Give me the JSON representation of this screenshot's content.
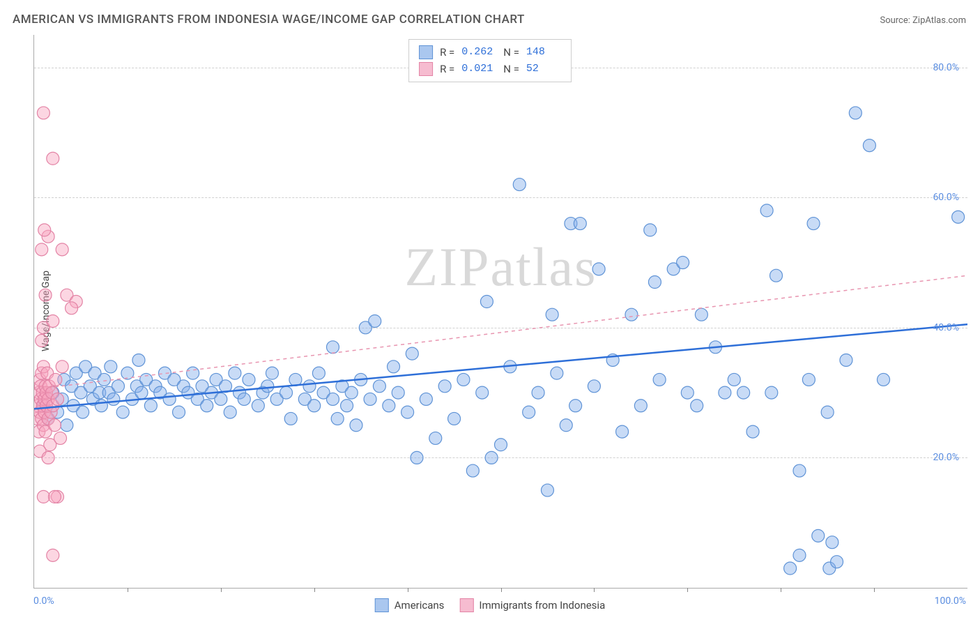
{
  "title": "AMERICAN VS IMMIGRANTS FROM INDONESIA WAGE/INCOME GAP CORRELATION CHART",
  "source_prefix": "Source: ",
  "source_name": "ZipAtlas.com",
  "y_axis_label": "Wage/Income Gap",
  "watermark": "ZIPatlas",
  "chart": {
    "type": "scatter",
    "background_color": "#ffffff",
    "grid_color": "#d0d0d0",
    "axis_color": "#aaaaaa",
    "tick_label_color": "#5a8de0",
    "xlim": [
      0,
      100
    ],
    "ylim": [
      0,
      85
    ],
    "x_tick_labels": {
      "min": "0.0%",
      "max": "100.0%"
    },
    "x_tick_positions": [
      10,
      20,
      30,
      40,
      50,
      60,
      70,
      80,
      90
    ],
    "y_ticks": [
      {
        "value": 20,
        "label": "20.0%"
      },
      {
        "value": 40,
        "label": "40.0%"
      },
      {
        "value": 60,
        "label": "60.0%"
      },
      {
        "value": 80,
        "label": "80.0%"
      }
    ],
    "marker_radius": 9,
    "marker_stroke_width": 1.2,
    "series": [
      {
        "key": "americans",
        "label": "Americans",
        "fill": "rgba(133,175,234,0.45)",
        "stroke": "#5f93d6",
        "swatch_fill": "#aac7ef",
        "swatch_border": "#5f93d6",
        "R": "0.262",
        "N": "148",
        "regression": {
          "x1": 0,
          "y1": 27.5,
          "x2": 100,
          "y2": 40.5,
          "color": "#2e6fd8",
          "width": 2.5,
          "dash": null
        },
        "points": [
          [
            1,
            28
          ],
          [
            1.5,
            26
          ],
          [
            2,
            30
          ],
          [
            2.5,
            27
          ],
          [
            3,
            29
          ],
          [
            3.2,
            32
          ],
          [
            3.5,
            25
          ],
          [
            4,
            31
          ],
          [
            4.2,
            28
          ],
          [
            4.5,
            33
          ],
          [
            5,
            30
          ],
          [
            5.2,
            27
          ],
          [
            5.5,
            34
          ],
          [
            6,
            31
          ],
          [
            6.3,
            29
          ],
          [
            6.5,
            33
          ],
          [
            7,
            30
          ],
          [
            7.2,
            28
          ],
          [
            7.5,
            32
          ],
          [
            8,
            30
          ],
          [
            8.2,
            34
          ],
          [
            8.5,
            29
          ],
          [
            9,
            31
          ],
          [
            9.5,
            27
          ],
          [
            10,
            33
          ],
          [
            10.5,
            29
          ],
          [
            11,
            31
          ],
          [
            11.2,
            35
          ],
          [
            11.5,
            30
          ],
          [
            12,
            32
          ],
          [
            12.5,
            28
          ],
          [
            13,
            31
          ],
          [
            13.5,
            30
          ],
          [
            14,
            33
          ],
          [
            14.5,
            29
          ],
          [
            15,
            32
          ],
          [
            15.5,
            27
          ],
          [
            16,
            31
          ],
          [
            16.5,
            30
          ],
          [
            17,
            33
          ],
          [
            17.5,
            29
          ],
          [
            18,
            31
          ],
          [
            18.5,
            28
          ],
          [
            19,
            30
          ],
          [
            19.5,
            32
          ],
          [
            20,
            29
          ],
          [
            20.5,
            31
          ],
          [
            21,
            27
          ],
          [
            21.5,
            33
          ],
          [
            22,
            30
          ],
          [
            22.5,
            29
          ],
          [
            23,
            32
          ],
          [
            24,
            28
          ],
          [
            24.5,
            30
          ],
          [
            25,
            31
          ],
          [
            25.5,
            33
          ],
          [
            26,
            29
          ],
          [
            27,
            30
          ],
          [
            27.5,
            26
          ],
          [
            28,
            32
          ],
          [
            29,
            29
          ],
          [
            29.5,
            31
          ],
          [
            30,
            28
          ],
          [
            30.5,
            33
          ],
          [
            31,
            30
          ],
          [
            32,
            29
          ],
          [
            32,
            37
          ],
          [
            32.5,
            26
          ],
          [
            33,
            31
          ],
          [
            33.5,
            28
          ],
          [
            34,
            30
          ],
          [
            34.5,
            25
          ],
          [
            35,
            32
          ],
          [
            35.5,
            40
          ],
          [
            36,
            29
          ],
          [
            36.5,
            41
          ],
          [
            37,
            31
          ],
          [
            38,
            28
          ],
          [
            38.5,
            34
          ],
          [
            39,
            30
          ],
          [
            40,
            27
          ],
          [
            40.5,
            36
          ],
          [
            41,
            20
          ],
          [
            42,
            29
          ],
          [
            43,
            23
          ],
          [
            44,
            31
          ],
          [
            45,
            26
          ],
          [
            46,
            32
          ],
          [
            47,
            18
          ],
          [
            48,
            30
          ],
          [
            48.5,
            44
          ],
          [
            49,
            20
          ],
          [
            50,
            22
          ],
          [
            51,
            34
          ],
          [
            52,
            62
          ],
          [
            53,
            27
          ],
          [
            54,
            30
          ],
          [
            55,
            15
          ],
          [
            55.5,
            42
          ],
          [
            56,
            33
          ],
          [
            57,
            25
          ],
          [
            57.5,
            56
          ],
          [
            58,
            28
          ],
          [
            58.5,
            56
          ],
          [
            60,
            31
          ],
          [
            60.5,
            49
          ],
          [
            62,
            35
          ],
          [
            63,
            24
          ],
          [
            64,
            42
          ],
          [
            65,
            28
          ],
          [
            66,
            55
          ],
          [
            66.5,
            47
          ],
          [
            67,
            32
          ],
          [
            68.5,
            49
          ],
          [
            69.5,
            50
          ],
          [
            70,
            30
          ],
          [
            71,
            28
          ],
          [
            71.5,
            42
          ],
          [
            73,
            37
          ],
          [
            74,
            30
          ],
          [
            75,
            32
          ],
          [
            76,
            30
          ],
          [
            77,
            24
          ],
          [
            78.5,
            58
          ],
          [
            79,
            30
          ],
          [
            79.5,
            48
          ],
          [
            81,
            3
          ],
          [
            82,
            18
          ],
          [
            82,
            5
          ],
          [
            83,
            32
          ],
          [
            83.5,
            56
          ],
          [
            84,
            8
          ],
          [
            85,
            27
          ],
          [
            85.2,
            3
          ],
          [
            85.5,
            7
          ],
          [
            86,
            4
          ],
          [
            87,
            35
          ],
          [
            88,
            73
          ],
          [
            89.5,
            68
          ],
          [
            91,
            32
          ],
          [
            99,
            57
          ]
        ]
      },
      {
        "key": "immigrants",
        "label": "Immigrants from Indonesia",
        "fill": "rgba(248,165,190,0.45)",
        "stroke": "#e383a5",
        "swatch_fill": "#f6bcd0",
        "swatch_border": "#e383a5",
        "R": "0.021",
        "N": " 52",
        "regression": {
          "x1": 0,
          "y1": 30.5,
          "x2": 100,
          "y2": 48,
          "color": "#e895b0",
          "width": 1.5,
          "dash": "5,5"
        },
        "points": [
          [
            0.3,
            26
          ],
          [
            0.4,
            28
          ],
          [
            0.5,
            30
          ],
          [
            0.5,
            24
          ],
          [
            0.6,
            27
          ],
          [
            0.6,
            32
          ],
          [
            0.7,
            29
          ],
          [
            0.7,
            31
          ],
          [
            0.8,
            26
          ],
          [
            0.8,
            33
          ],
          [
            0.9,
            28
          ],
          [
            0.9,
            30
          ],
          [
            1.0,
            25
          ],
          [
            1.0,
            34
          ],
          [
            1.1,
            29
          ],
          [
            1.1,
            27
          ],
          [
            1.2,
            31
          ],
          [
            1.2,
            24
          ],
          [
            1.3,
            30
          ],
          [
            1.3,
            28
          ],
          [
            1.4,
            33
          ],
          [
            1.5,
            26
          ],
          [
            1.5,
            29
          ],
          [
            1.6,
            31
          ],
          [
            1.7,
            22
          ],
          [
            1.8,
            27
          ],
          [
            1.9,
            30
          ],
          [
            2.0,
            28
          ],
          [
            2.2,
            25
          ],
          [
            2.3,
            32
          ],
          [
            2.5,
            29
          ],
          [
            2.8,
            23
          ],
          [
            3.0,
            34
          ],
          [
            1.0,
            40
          ],
          [
            1.2,
            45
          ],
          [
            0.8,
            52
          ],
          [
            1.5,
            54
          ],
          [
            1.1,
            55
          ],
          [
            3.5,
            45
          ],
          [
            4.5,
            44
          ],
          [
            2.0,
            66
          ],
          [
            1.0,
            73
          ],
          [
            3.0,
            52
          ],
          [
            0.6,
            21
          ],
          [
            1.5,
            20
          ],
          [
            1.0,
            14
          ],
          [
            2.5,
            14
          ],
          [
            0.8,
            38
          ],
          [
            2.0,
            41
          ],
          [
            4.0,
            43
          ],
          [
            2.0,
            5
          ],
          [
            2.2,
            14
          ]
        ]
      }
    ]
  },
  "legend_top_labels": {
    "R": "R =",
    "N": "N ="
  }
}
